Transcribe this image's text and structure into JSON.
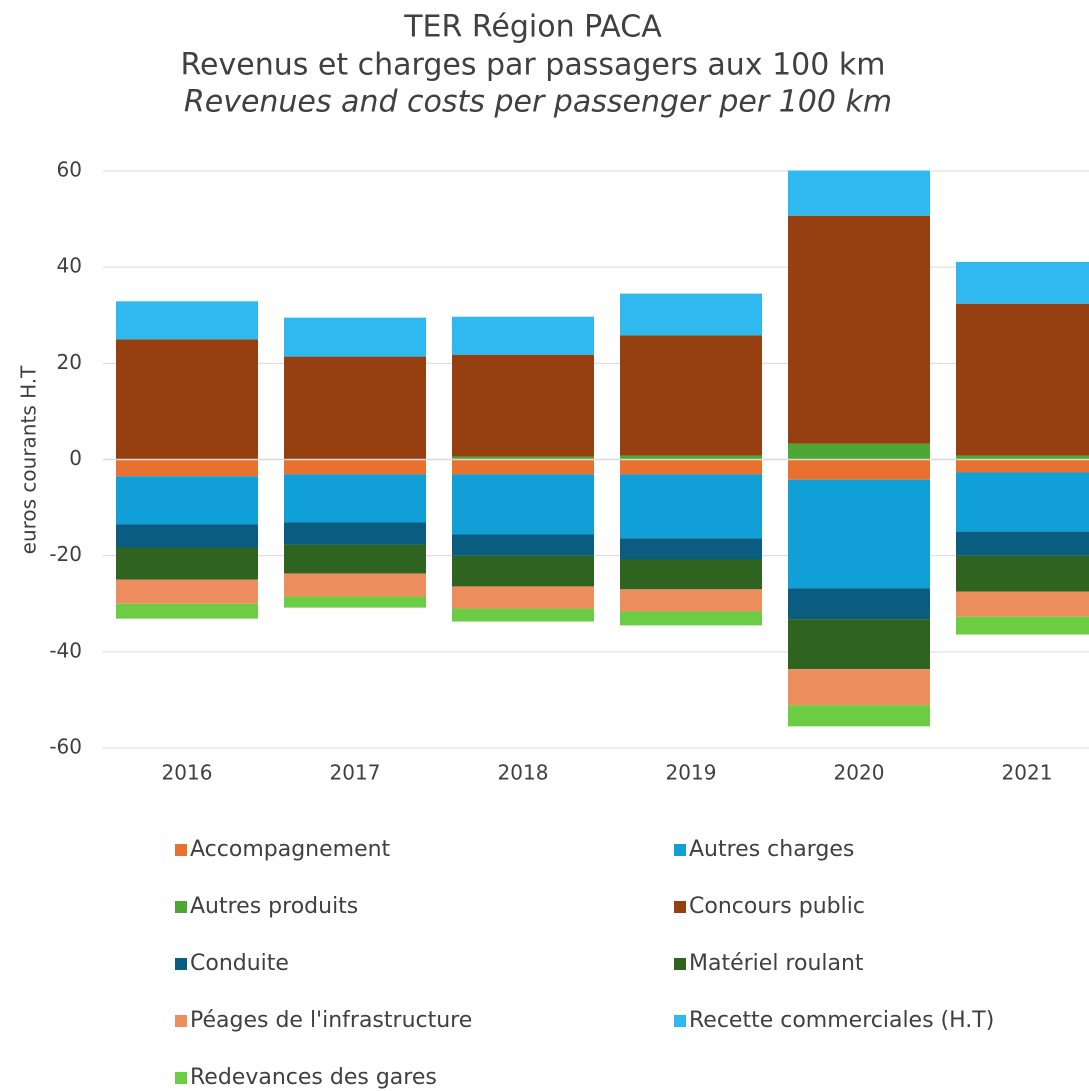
{
  "chart_data": {
    "type": "stacked_bar",
    "title": "TER Région PACA",
    "subtitle": "Revenus et charges par passagers aux 100 km",
    "subtitle_en": "Revenues and costs per passenger per 100 km",
    "y_label": "euros courants H.T",
    "categories": [
      "2016",
      "2017",
      "2018",
      "2019",
      "2020",
      "2021"
    ],
    "ylim": [
      -60,
      60
    ],
    "yticks": [
      -60,
      -40,
      -20,
      0,
      20,
      40,
      60
    ],
    "grid": true,
    "series": [
      {
        "name": "Accompagnement",
        "color": "#e8712f",
        "values": [
          -3.5,
          -3.1,
          -3.1,
          -3.1,
          -4.2,
          -2.7
        ]
      },
      {
        "name": "Autres charges",
        "color": "#119fd8",
        "values": [
          -10,
          -10,
          -12.5,
          -13.3,
          -22.6,
          -12.3
        ]
      },
      {
        "name": "Autres produits",
        "color": "#4ca832",
        "values": [
          0,
          0,
          0.6,
          0.8,
          3.3,
          0.8
        ]
      },
      {
        "name": "Concours public",
        "color": "#963f10",
        "values": [
          25,
          21.4,
          21.2,
          25,
          47.4,
          31.6
        ]
      },
      {
        "name": "Conduite",
        "color": "#0a5c80",
        "values": [
          -4.8,
          -4.6,
          -4.4,
          -4.4,
          -6.4,
          -5
        ]
      },
      {
        "name": "Matériel roulant",
        "color": "#2e6420",
        "values": [
          -6.7,
          -6,
          -6.4,
          -6.2,
          -10.4,
          -7.5
        ]
      },
      {
        "name": "Péages de l'infrastructure",
        "color": "#ec8e5e",
        "values": [
          -5,
          -4.8,
          -4.6,
          -4.6,
          -7.5,
          -5.2
        ]
      },
      {
        "name": "Recette commerciales (H.T)",
        "color": "#2fb9ee",
        "values": [
          7.9,
          8.1,
          7.9,
          8.7,
          9.4,
          8.7
        ]
      },
      {
        "name": "Redevances des gares",
        "color": "#6ccc44",
        "values": [
          -3.1,
          -2.3,
          -2.7,
          -2.9,
          -4.4,
          -3.7
        ]
      }
    ]
  }
}
